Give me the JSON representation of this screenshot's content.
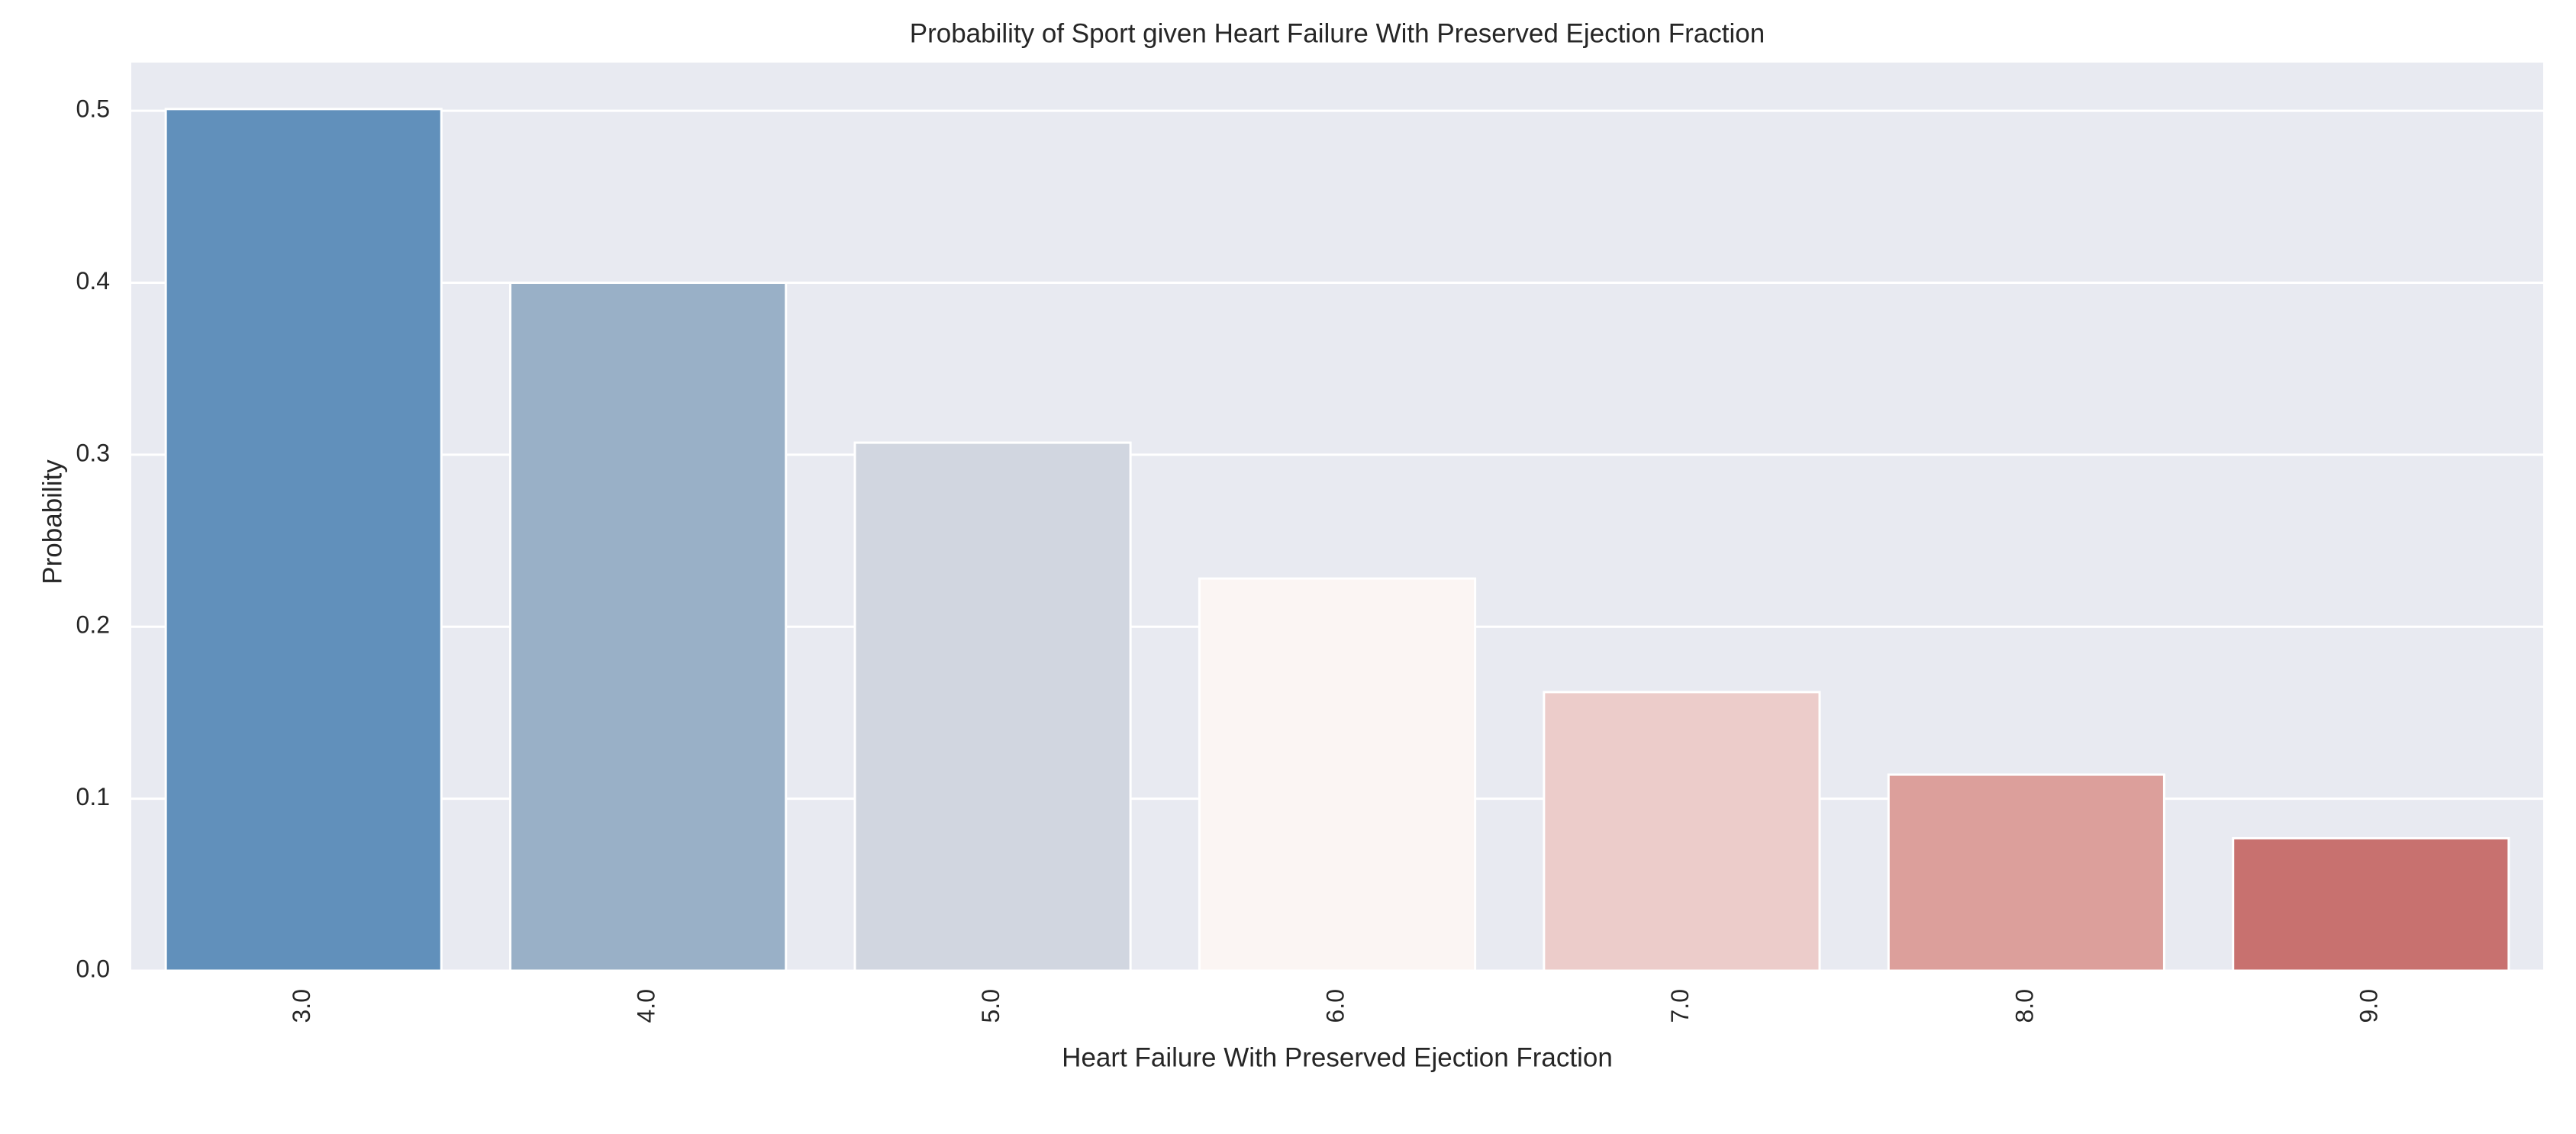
{
  "chart_data": {
    "type": "bar",
    "title": "Probability of Sport given Heart Failure With Preserved Ejection Fraction",
    "x_label": "Heart Failure With Preserved Ejection Fraction",
    "y_label": "Probability",
    "categories": [
      "3.0",
      "4.0",
      "5.0",
      "6.0",
      "7.0",
      "8.0",
      "9.0"
    ],
    "values": [
      0.501,
      0.4,
      0.307,
      0.228,
      0.162,
      0.114,
      0.077
    ],
    "colors": [
      "#6190bb",
      "#99b0c7",
      "#d1d6e0",
      "#fbf5f3",
      "#ecccca",
      "#dc9f9b",
      "#c8716f"
    ],
    "ylim": [
      0,
      0.528
    ],
    "yticks": [
      {
        "value": 0,
        "label": "0.0"
      },
      0.1,
      0.2,
      0.3,
      0.4,
      0.5
    ],
    "grid": true
  }
}
